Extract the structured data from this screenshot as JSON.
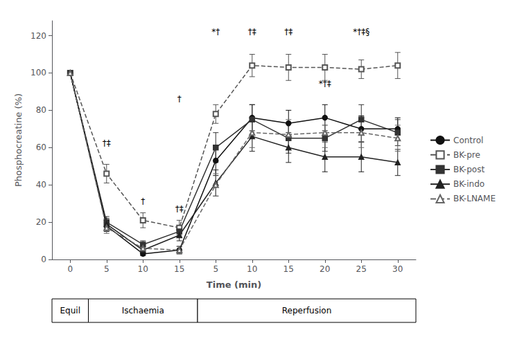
{
  "chart_data": {
    "type": "line",
    "xlabel": "Time (min)",
    "ylabel": "Phosphocreatine (%)",
    "categories": [
      "0",
      "5",
      "10",
      "15",
      "5",
      "10",
      "15",
      "20",
      "25",
      "30"
    ],
    "ylim": [
      0,
      128
    ],
    "yticks": [
      0,
      20,
      40,
      60,
      80,
      100,
      120
    ],
    "grid": false,
    "legend": "right",
    "series": [
      {
        "name": "Control",
        "color": "#111111",
        "marker": "circle",
        "line_style": "solid",
        "values": [
          100,
          18,
          3,
          5,
          53,
          76,
          73,
          76,
          70,
          70
        ],
        "errors": [
          0,
          3,
          1,
          2,
          8,
          7,
          7,
          7,
          7,
          6
        ]
      },
      {
        "name": "BK-pre",
        "color": "#555555",
        "marker": "open square",
        "line_style": "dashed",
        "values": [
          100,
          46,
          21,
          17,
          78,
          104,
          103,
          103,
          102,
          104
        ],
        "errors": [
          0,
          5,
          4,
          4,
          5,
          6,
          7,
          7,
          5,
          7
        ]
      },
      {
        "name": "BK-post",
        "color": "#333333",
        "marker": "square",
        "line_style": "solid",
        "values": [
          100,
          20,
          8,
          15,
          60,
          75,
          65,
          65,
          75,
          68
        ],
        "errors": [
          0,
          3,
          2,
          3,
          8,
          8,
          8,
          7,
          8,
          7
        ]
      },
      {
        "name": "BK-indo",
        "color": "#222222",
        "marker": "triangle",
        "line_style": "solid",
        "values": [
          100,
          19,
          5,
          13,
          41,
          66,
          60,
          55,
          55,
          52
        ],
        "errors": [
          0,
          3,
          2,
          3,
          7,
          8,
          8,
          8,
          8,
          7
        ]
      },
      {
        "name": "BK-LNAME",
        "color": "#666666",
        "marker": "open triangle",
        "line_style": "dashed",
        "values": [
          100,
          17,
          6,
          5,
          40,
          68,
          67,
          68,
          68,
          65
        ],
        "errors": [
          0,
          3,
          2,
          2,
          6,
          8,
          8,
          8,
          8,
          7
        ]
      }
    ],
    "annotations": [
      {
        "text": "*†",
        "x": 4,
        "y": 120
      },
      {
        "text": "†‡",
        "x": 5,
        "y": 120
      },
      {
        "text": "†‡",
        "x": 6,
        "y": 120
      },
      {
        "text": "*†‡§",
        "x": 8,
        "y": 120
      },
      {
        "text": "†",
        "x": 3,
        "y": 84
      },
      {
        "text": "†‡",
        "x": 1,
        "y": 60
      },
      {
        "text": "†",
        "x": 2,
        "y": 29
      },
      {
        "text": "†‡",
        "x": 3,
        "y": 25
      },
      {
        "text": "*†‡",
        "x": 7,
        "y": 92
      }
    ],
    "phases": [
      {
        "text": "Equil",
        "from": 0,
        "to": 0
      },
      {
        "text": "Ischaemia",
        "from": 1,
        "to": 3
      },
      {
        "text": "Reperfusion",
        "from": 4,
        "to": 9
      }
    ]
  }
}
